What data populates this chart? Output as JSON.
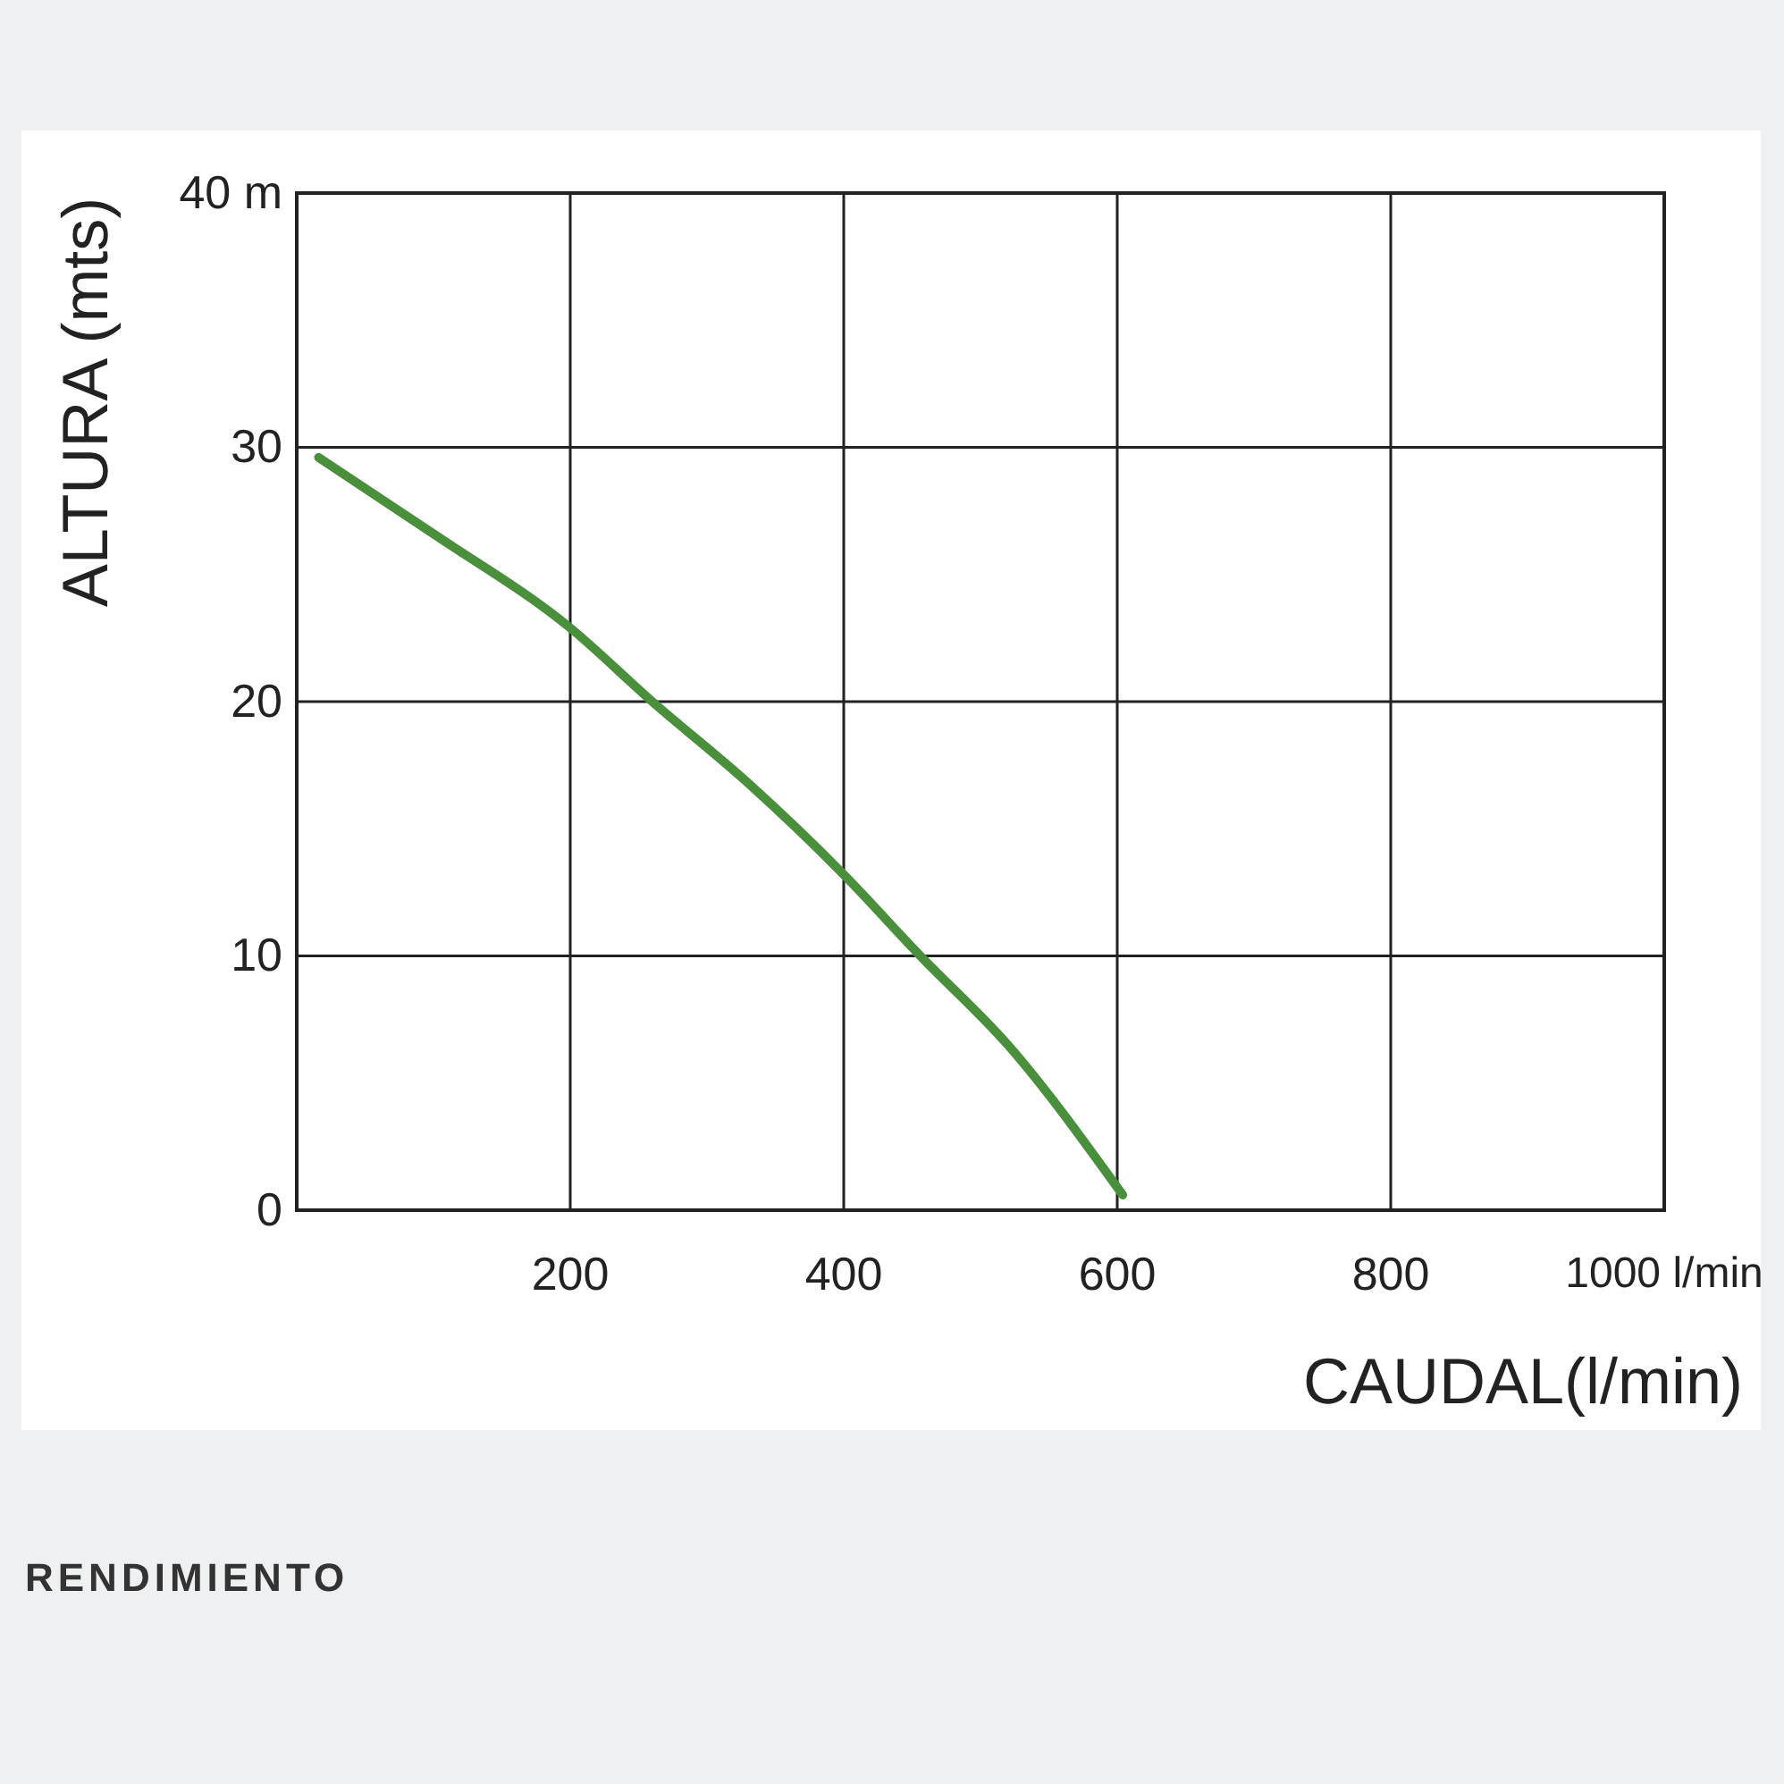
{
  "chart_data": {
    "type": "line",
    "xlabel": "CAUDAL(l/min)",
    "ylabel": "ALTURA (mts)",
    "x": [
      16,
      100,
      200,
      260,
      330,
      400,
      456,
      520,
      604
    ],
    "series": [
      {
        "color": "#4a8f3c",
        "values": [
          29.6,
          26.6,
          22.9,
          20,
          16.8,
          13.2,
          10,
          6.5,
          0.6
        ]
      }
    ],
    "xlim": [
      0,
      1000
    ],
    "xticks": [
      200,
      400,
      600,
      800,
      {
        "value": 1000,
        "label": "1000 l/min"
      }
    ],
    "ylim": [
      0,
      40
    ],
    "yticks": [
      0,
      10,
      20,
      30,
      {
        "value": 40,
        "label": "40 m"
      }
    ],
    "grid": true,
    "marker": "none",
    "line_style": "solid",
    "annotations": [
      "RENDIMIENTO"
    ]
  }
}
